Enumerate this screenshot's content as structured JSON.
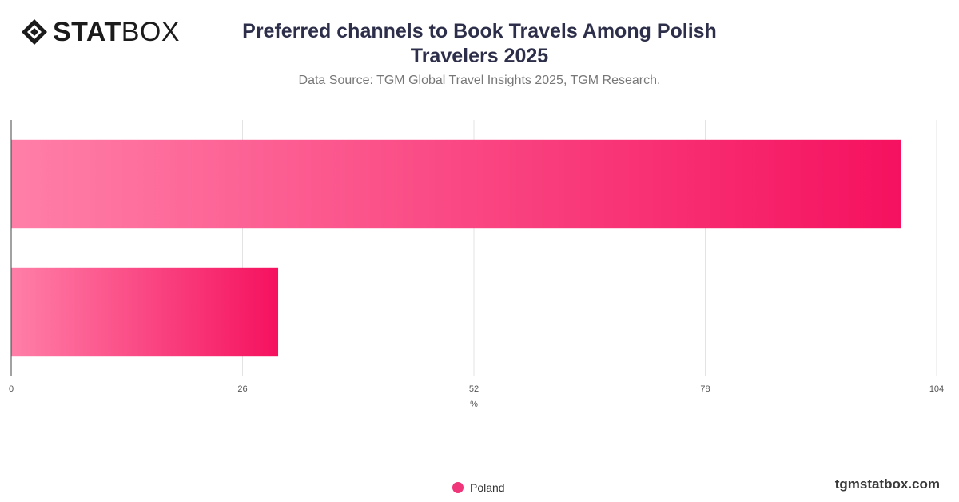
{
  "brand": {
    "logo_bold": "STAT",
    "logo_light": "BOX",
    "watermark": "tgmstatbox.com"
  },
  "header": {
    "title_line1": "Preferred channels to Book Travels Among Polish",
    "title_line2": "Travelers 2025",
    "subtitle": "Data Source: TGM Global Travel Insights 2025, TGM Research."
  },
  "chart_data": {
    "type": "bar",
    "orientation": "horizontal",
    "categories": [
      "",
      ""
    ],
    "series": [
      {
        "name": "Poland",
        "values": [
          100,
          30
        ]
      }
    ],
    "xlabel": "%",
    "ylabel": "",
    "xlim": [
      0,
      104
    ],
    "ticks": [
      0,
      26,
      52,
      78,
      104
    ],
    "grid": true,
    "legend_position": "bottom-center",
    "colors": {
      "bar_start": "#ff7fa8",
      "bar_end": "#f5115f",
      "grid": "#e3e3e3",
      "axis": "#444444",
      "legend_dot": "#f0357a"
    }
  }
}
